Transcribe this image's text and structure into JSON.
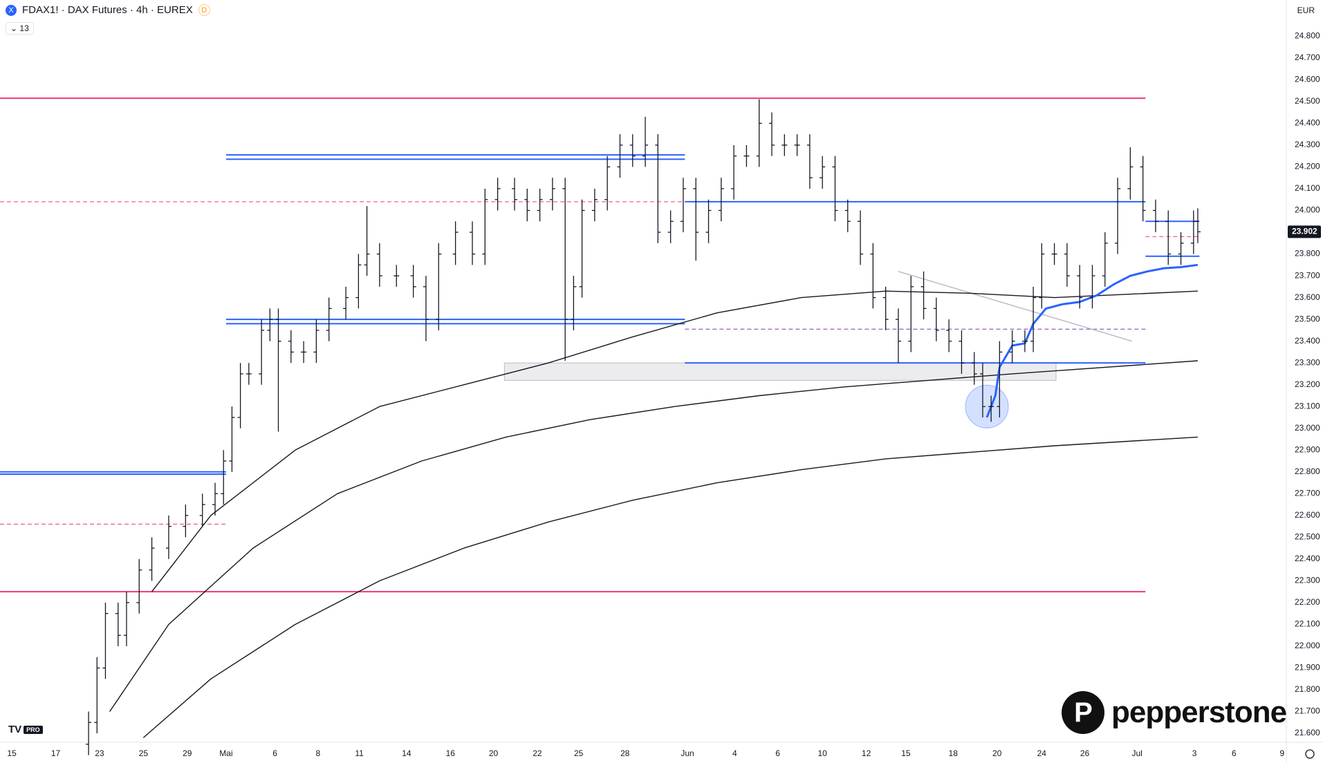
{
  "header": {
    "symbol": "FDAX1! · DAX Futures · 4h · EUREX",
    "badge": "D",
    "indicator_count": 13,
    "currency": "EUR"
  },
  "logo": {
    "brand": "pepperstone",
    "tv": "PRO"
  },
  "chart_data": {
    "type": "ohlc",
    "color": "#131722",
    "x": [
      10.5,
      11.5,
      12.5,
      14,
      15,
      16.5,
      18,
      20,
      22,
      24,
      25.5,
      26.5,
      27.5,
      28.5,
      29.5,
      31,
      32,
      33,
      34.5,
      36,
      37.5,
      39,
      41,
      42.5,
      43.5,
      45,
      47,
      49,
      50.5,
      52,
      54,
      56,
      57.5,
      59,
      61,
      62.5,
      64,
      65.5,
      67,
      68,
      69,
      70.5,
      72,
      73.5,
      75,
      76.5,
      78,
      79.5,
      81,
      82.5,
      84,
      85.5,
      87,
      88.5,
      90,
      91.5,
      93,
      94.5,
      96,
      97.5,
      99,
      100.5,
      102,
      103.5,
      105,
      106.5,
      108,
      109.5,
      111,
      112.5,
      114,
      115.5,
      116.5,
      117.5,
      118.5,
      120,
      121.5,
      122.5,
      123.5,
      125,
      126.5,
      128,
      129.5,
      131,
      132.5,
      134,
      135.5,
      137,
      138.5,
      140,
      141.5,
      142
    ],
    "open": [
      21550,
      21650,
      21900,
      22150,
      22050,
      22200,
      22350,
      22450,
      22550,
      22600,
      22650,
      22700,
      22850,
      23050,
      23250,
      23250,
      23450,
      23500,
      23400,
      23350,
      23350,
      23450,
      23550,
      23600,
      23750,
      23800,
      23700,
      23700,
      23650,
      23500,
      23800,
      23900,
      23800,
      24050,
      24100,
      24050,
      24000,
      24050,
      24100,
      23500,
      23650,
      24000,
      24050,
      24200,
      24300,
      24250,
      24300,
      23900,
      23950,
      24100,
      23900,
      24000,
      24100,
      24250,
      24250,
      24400,
      24300,
      24300,
      24300,
      24150,
      24200,
      24000,
      23950,
      23800,
      23600,
      23500,
      23400,
      23650,
      23550,
      23450,
      23400,
      23300,
      23250,
      23100,
      23100,
      23350,
      23400,
      23400,
      23600,
      23800,
      23800,
      23700,
      23600,
      23700,
      23850,
      24100,
      24200,
      24000,
      23950,
      23800,
      23850,
      23950
    ],
    "high": [
      21700,
      21950,
      22200,
      22200,
      22250,
      22400,
      22500,
      22600,
      22650,
      22700,
      22750,
      22900,
      23100,
      23300,
      23300,
      23500,
      23550,
      23550,
      23450,
      23400,
      23500,
      23600,
      23650,
      23800,
      24020,
      23850,
      23750,
      23750,
      23700,
      23850,
      23950,
      23950,
      24100,
      24150,
      24150,
      24100,
      24100,
      24150,
      24150,
      23700,
      24050,
      24100,
      24250,
      24350,
      24350,
      24430,
      24350,
      24000,
      24150,
      24150,
      24050,
      24150,
      24300,
      24300,
      24510,
      24450,
      24350,
      24350,
      24350,
      24250,
      24250,
      24050,
      24000,
      23850,
      23650,
      23550,
      23700,
      23720,
      23600,
      23500,
      23450,
      23350,
      23300,
      23150,
      23400,
      23450,
      23450,
      23650,
      23850,
      23850,
      23850,
      23750,
      23750,
      23900,
      24150,
      24290,
      24250,
      24050,
      24000,
      23900,
      24000,
      24010
    ],
    "low": [
      21500,
      21600,
      21850,
      22000,
      22000,
      22150,
      22300,
      22400,
      22500,
      22550,
      22600,
      22650,
      22800,
      23000,
      23200,
      23200,
      23400,
      22985,
      23300,
      23300,
      23300,
      23400,
      23500,
      23550,
      23700,
      23650,
      23650,
      23600,
      23400,
      23450,
      23750,
      23750,
      23750,
      24000,
      24000,
      23950,
      23950,
      24000,
      23310,
      23450,
      23600,
      23950,
      24000,
      24150,
      24200,
      24200,
      23850,
      23850,
      23900,
      23770,
      23850,
      23950,
      24050,
      24200,
      24200,
      24250,
      24250,
      24250,
      24100,
      24100,
      23950,
      23900,
      23750,
      23550,
      23450,
      23300,
      23350,
      23500,
      23400,
      23350,
      23250,
      23200,
      23050,
      23030,
      23050,
      23300,
      23350,
      23350,
      23550,
      23750,
      23650,
      23550,
      23550,
      23650,
      23800,
      24050,
      23950,
      23900,
      23750,
      23750,
      23800,
      23850
    ],
    "close": [
      21650,
      21900,
      22150,
      22050,
      22200,
      22350,
      22450,
      22550,
      22600,
      22650,
      22700,
      22850,
      23050,
      23250,
      23250,
      23450,
      23500,
      23400,
      23350,
      23350,
      23450,
      23550,
      23600,
      23750,
      23800,
      23700,
      23700,
      23650,
      23500,
      23800,
      23900,
      23800,
      24050,
      24100,
      24050,
      24000,
      24050,
      24100,
      23500,
      23650,
      24000,
      24050,
      24200,
      24300,
      24250,
      24300,
      23900,
      23950,
      24100,
      23900,
      24000,
      24100,
      24250,
      24250,
      24400,
      24300,
      24300,
      24300,
      24150,
      24200,
      24000,
      23950,
      23800,
      23600,
      23500,
      23400,
      23650,
      23550,
      23450,
      23400,
      23300,
      23250,
      23100,
      23100,
      23350,
      23400,
      23400,
      23600,
      23800,
      23800,
      23700,
      23600,
      23700,
      23850,
      24100,
      24200,
      24000,
      23950,
      23800,
      23850,
      23950,
      23902
    ],
    "xlim": [
      0,
      152.5
    ],
    "xticks": [
      {
        "value": 1.4,
        "label": "15"
      },
      {
        "value": 6.6,
        "label": "17"
      },
      {
        "value": 11.8,
        "label": "23"
      },
      {
        "value": 17,
        "label": "25"
      },
      {
        "value": 22.2,
        "label": "29"
      },
      {
        "value": 26.8,
        "label": "Mai"
      },
      {
        "value": 32.6,
        "label": "6"
      },
      {
        "value": 37.7,
        "label": "8"
      },
      {
        "value": 42.6,
        "label": "11"
      },
      {
        "value": 48.2,
        "label": "14"
      },
      {
        "value": 53.4,
        "label": "16"
      },
      {
        "value": 58.5,
        "label": "20"
      },
      {
        "value": 63.7,
        "label": "22"
      },
      {
        "value": 68.6,
        "label": "25"
      },
      {
        "value": 74.1,
        "label": "28"
      },
      {
        "value": 81.5,
        "label": "Jun"
      },
      {
        "value": 87.1,
        "label": "4"
      },
      {
        "value": 92.2,
        "label": "6"
      },
      {
        "value": 97.5,
        "label": "10"
      },
      {
        "value": 102.7,
        "label": "12"
      },
      {
        "value": 107.4,
        "label": "15"
      },
      {
        "value": 113,
        "label": "18"
      },
      {
        "value": 118.2,
        "label": "20"
      },
      {
        "value": 123.5,
        "label": "24"
      },
      {
        "value": 128.6,
        "label": "26"
      },
      {
        "value": 134.8,
        "label": "Jul"
      },
      {
        "value": 141.6,
        "label": "3"
      },
      {
        "value": 146.3,
        "label": "6"
      },
      {
        "value": 152,
        "label": "9"
      }
    ],
    "ylim": [
      21559,
      24966
    ],
    "yticks": [
      {
        "value": 21600,
        "label": "21.600"
      },
      {
        "value": 21700,
        "label": "21.700"
      },
      {
        "value": 21800,
        "label": "21.800"
      },
      {
        "value": 21900,
        "label": "21.900"
      },
      {
        "value": 22000,
        "label": "22.000"
      },
      {
        "value": 22100,
        "label": "22.100"
      },
      {
        "value": 22200,
        "label": "22.200"
      },
      {
        "value": 22300,
        "label": "22.300"
      },
      {
        "value": 22400,
        "label": "22.400"
      },
      {
        "value": 22500,
        "label": "22.500"
      },
      {
        "value": 22600,
        "label": "22.600"
      },
      {
        "value": 22700,
        "label": "22.700"
      },
      {
        "value": 22800,
        "label": "22.800"
      },
      {
        "value": 22900,
        "label": "22.900"
      },
      {
        "value": 23000,
        "label": "23.000"
      },
      {
        "value": 23100,
        "label": "23.100"
      },
      {
        "value": 23200,
        "label": "23.200"
      },
      {
        "value": 23300,
        "label": "23.300"
      },
      {
        "value": 23400,
        "label": "23.400"
      },
      {
        "value": 23500,
        "label": "23.500"
      },
      {
        "value": 23600,
        "label": "23.600"
      },
      {
        "value": 23700,
        "label": "23.700"
      },
      {
        "value": 23800,
        "label": "23.800"
      },
      {
        "value": 23900,
        "label": "23.900"
      },
      {
        "value": 24000,
        "label": "24.000"
      },
      {
        "value": 24100,
        "label": "24.100"
      },
      {
        "value": 24200,
        "label": "24.200"
      },
      {
        "value": 24300,
        "label": "24.300"
      },
      {
        "value": 24400,
        "label": "24.400"
      },
      {
        "value": 24500,
        "label": "24.500"
      },
      {
        "value": 24600,
        "label": "24.600"
      },
      {
        "value": 24700,
        "label": "24.700"
      },
      {
        "value": 24800,
        "label": "24.800"
      }
    ],
    "last_price": {
      "value": 23902,
      "label": "23.902"
    },
    "lines": [
      {
        "color": "#131722",
        "width": 1.4,
        "x": [
          18,
          25,
          35,
          45,
          55,
          65,
          75,
          85,
          95,
          105,
          115,
          125,
          142
        ],
        "values": [
          22250,
          22600,
          22900,
          23100,
          23200,
          23300,
          23420,
          23530,
          23600,
          23630,
          23620,
          23600,
          23630
        ]
      },
      {
        "color": "#131722",
        "width": 1.4,
        "x": [
          13,
          20,
          30,
          40,
          50,
          60,
          70,
          80,
          90,
          100,
          110,
          120,
          142
        ],
        "values": [
          21700,
          22100,
          22450,
          22700,
          22850,
          22960,
          23040,
          23100,
          23150,
          23190,
          23220,
          23250,
          23310
        ]
      },
      {
        "color": "#131722",
        "width": 1.4,
        "x": [
          17,
          25,
          35,
          45,
          55,
          65,
          75,
          85,
          95,
          105,
          115,
          125,
          142
        ],
        "values": [
          21580,
          21850,
          22100,
          22300,
          22450,
          22570,
          22670,
          22750,
          22810,
          22860,
          22890,
          22920,
          22960
        ]
      },
      {
        "color": "#2962ff",
        "width": 3,
        "x": [
          117,
          118,
          118.5,
          120,
          121.5,
          122.5,
          124,
          126,
          128,
          130,
          132,
          134,
          136,
          138,
          140,
          142
        ],
        "values": [
          23050,
          23150,
          23280,
          23380,
          23390,
          23480,
          23550,
          23570,
          23580,
          23610,
          23660,
          23700,
          23720,
          23735,
          23740,
          23750
        ]
      }
    ],
    "levels": [
      {
        "value": 24515,
        "color": "#f23674",
        "style": "solid",
        "x": [
          0,
          135.8
        ]
      },
      {
        "value": 22250,
        "color": "#f23674",
        "style": "solid",
        "x": [
          0,
          135.8
        ]
      },
      {
        "value": 24255,
        "color": "#2962ff",
        "style": "solid",
        "x": [
          26.8,
          81.2
        ]
      },
      {
        "value": 24235,
        "color": "#2962ff",
        "style": "solid",
        "x": [
          26.8,
          81.2
        ]
      },
      {
        "value": 23500,
        "color": "#2962ff",
        "style": "solid",
        "x": [
          26.8,
          81.2
        ]
      },
      {
        "value": 23480,
        "color": "#2962ff",
        "style": "solid",
        "x": [
          26.8,
          81.2
        ]
      },
      {
        "value": 22800,
        "color": "#2962ff",
        "style": "solid",
        "x": [
          0,
          26.8
        ]
      },
      {
        "value": 22790,
        "color": "#2962ff",
        "style": "solid",
        "x": [
          0,
          26.8
        ]
      },
      {
        "value": 24040,
        "color": "#f06292",
        "style": "dashed",
        "x": [
          0,
          81.2
        ]
      },
      {
        "value": 22560,
        "color": "#f06292",
        "style": "dashed",
        "x": [
          0,
          26.8
        ]
      },
      {
        "value": 24040,
        "color": "#2962ff",
        "style": "solid",
        "x": [
          81.2,
          135.8
        ]
      },
      {
        "value": 23300,
        "color": "#2962ff",
        "style": "solid",
        "x": [
          81.2,
          135.8
        ]
      },
      {
        "value": 23455,
        "color": "#9c6bd1",
        "style": "dashed",
        "x": [
          81.2,
          135.8
        ]
      },
      {
        "value": 23950,
        "color": "#2962ff",
        "style": "solid",
        "x": [
          135.8,
          142.2
        ]
      },
      {
        "value": 23880,
        "color": "#f06292",
        "style": "dashed",
        "x": [
          135.8,
          142.2
        ]
      },
      {
        "value": 23790,
        "color": "#2962ff",
        "style": "solid",
        "x": [
          135.8,
          142.2
        ]
      }
    ],
    "zones": [
      {
        "x": [
          59.8,
          125.2
        ],
        "values": [
          23220,
          23300
        ],
        "color": "#9598a1"
      }
    ],
    "trendlines": [
      {
        "x": [
          106.5,
          134.2
        ],
        "values": [
          23720,
          23400
        ],
        "color": "#b2b5be"
      }
    ],
    "highlights": [
      {
        "x": 117,
        "value": 23100,
        "color": "#2962ff"
      }
    ]
  }
}
